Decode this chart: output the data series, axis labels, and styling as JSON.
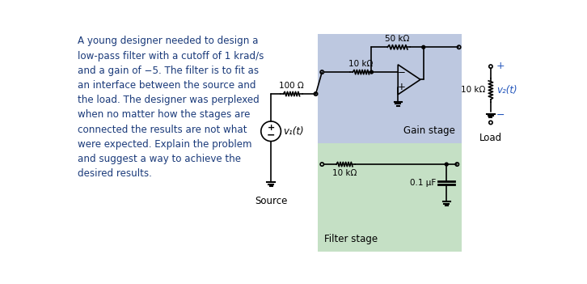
{
  "text_block": "A young designer needed to design a\nlow-pass filter with a cutoff of 1 krad/s\nand a gain of −5. The filter is to fit as\nan interface between the source and\nthe load. The designer was perplexed\nwhen no matter how the stages are\nconnected the results are not what\nwere expected. Explain the problem\nand suggest a way to achieve the\ndesired results.",
  "text_color": "#1a3a7a",
  "gain_stage_bg": "#bdc8e0",
  "filter_stage_bg": "#c5e0c5",
  "source_label": "Source",
  "load_label": "Load",
  "gain_stage_label": "Gain stage",
  "filter_stage_label": "Filter stage",
  "r_source": "100 Ω",
  "r_in_gain": "10 kΩ",
  "r_fb_gain": "50 kΩ",
  "r_filter": "10 kΩ",
  "c_filter": "0.1 μF",
  "r_load": "10 kΩ",
  "v1_label": "v₁(t)",
  "v2_label": "v₂(t)",
  "bg_color": "#ffffff",
  "blue": "#2255bb"
}
